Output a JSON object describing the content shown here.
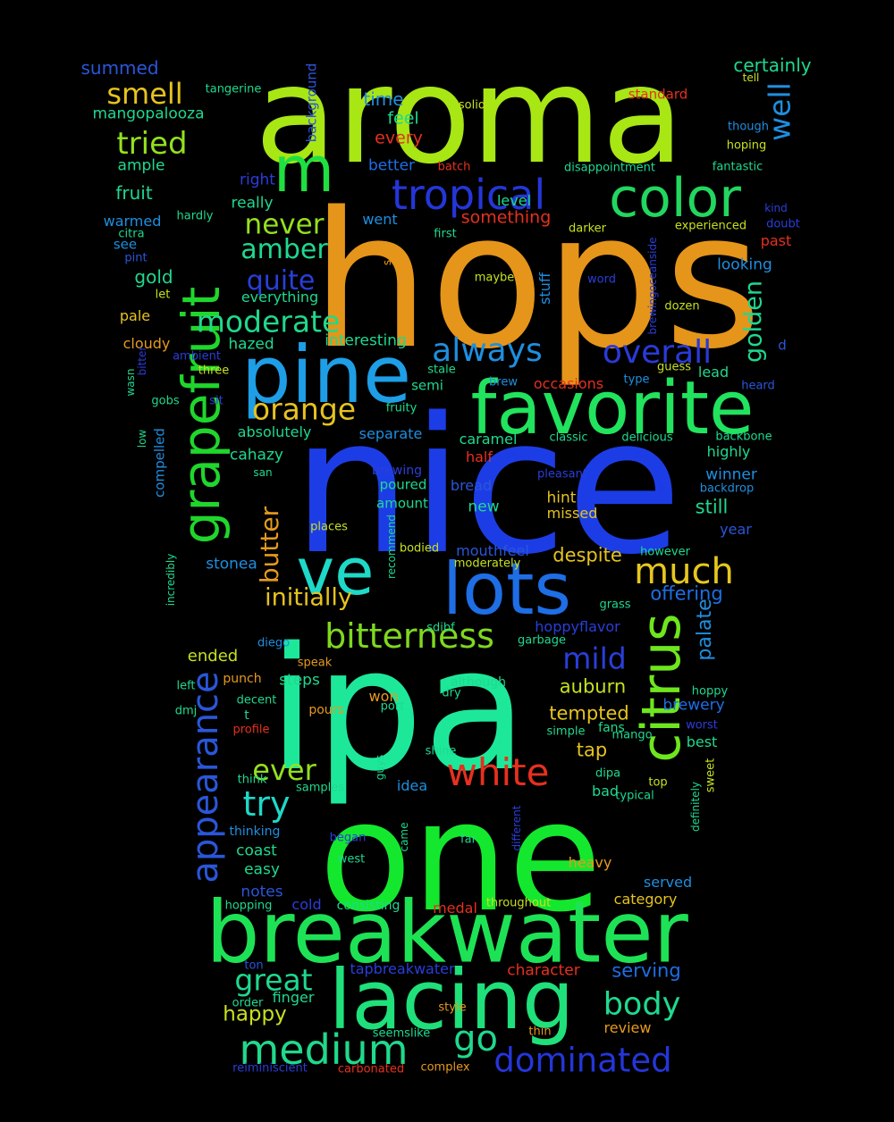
{
  "words": [
    {
      "text": "aroma",
      "color": "#a8e614"
    },
    {
      "text": "hops",
      "color": "#e5951a"
    },
    {
      "text": "nice",
      "color": "#1c3de6"
    },
    {
      "text": "ipa",
      "color": "#1de89a"
    },
    {
      "text": "one",
      "color": "#14e82e"
    },
    {
      "text": "breakwater",
      "color": "#1ee255"
    },
    {
      "text": "lacing",
      "color": "#1fe07a"
    },
    {
      "text": "pine",
      "color": "#1e9ee6"
    },
    {
      "text": "favorite",
      "color": "#21e35e"
    },
    {
      "text": "lots",
      "color": "#1e6ee6"
    },
    {
      "text": "grapefruit",
      "color": "#20d62c"
    },
    {
      "text": "citrus",
      "color": "#6ee61e"
    },
    {
      "text": "color",
      "color": "#22d65f"
    },
    {
      "text": "tropical",
      "color": "#2436d9"
    },
    {
      "text": "ve",
      "color": "#1ed9c8"
    },
    {
      "text": "m",
      "color": "#1ee040"
    },
    {
      "text": "white",
      "color": "#e6301e"
    },
    {
      "text": "medium",
      "color": "#20d98c"
    },
    {
      "text": "appearance",
      "color": "#2a56d9"
    },
    {
      "text": "much",
      "color": "#e6c71e"
    },
    {
      "text": "bitterness",
      "color": "#7fd81e"
    },
    {
      "text": "always",
      "color": "#1e8fe0"
    },
    {
      "text": "overall",
      "color": "#2a3ad9"
    },
    {
      "text": "moderate",
      "color": "#20d98a"
    },
    {
      "text": "dominated",
      "color": "#2436d9"
    },
    {
      "text": "orange",
      "color": "#e6c31e"
    },
    {
      "text": "mild",
      "color": "#2a3ed9"
    },
    {
      "text": "butter",
      "color": "#e69a1e"
    },
    {
      "text": "go",
      "color": "#1ed98f"
    },
    {
      "text": "body",
      "color": "#1ed98f"
    },
    {
      "text": "great",
      "color": "#1ed98f"
    },
    {
      "text": "try",
      "color": "#1ed9c8"
    },
    {
      "text": "ever",
      "color": "#94e01e"
    },
    {
      "text": "quite",
      "color": "#2a3ed9"
    },
    {
      "text": "tried",
      "color": "#94e01e"
    },
    {
      "text": "smell",
      "color": "#e6c31e"
    },
    {
      "text": "never",
      "color": "#94e01e"
    },
    {
      "text": "amber",
      "color": "#1ed98f"
    },
    {
      "text": "well",
      "color": "#1e8fe0"
    },
    {
      "text": "golden",
      "color": "#1ed98f"
    },
    {
      "text": "palate",
      "color": "#1e8fe0"
    },
    {
      "text": "initially",
      "color": "#e6c31e"
    },
    {
      "text": "happy",
      "color": "#c8e01e"
    },
    {
      "text": "despite",
      "color": "#e6c31e"
    },
    {
      "text": "offering",
      "color": "#1e6ee6"
    },
    {
      "text": "auburn",
      "color": "#c8e01e"
    },
    {
      "text": "tempted",
      "color": "#e6c31e"
    },
    {
      "text": "serving",
      "color": "#1e6ee6"
    },
    {
      "text": "tap",
      "color": "#e6c31e"
    },
    {
      "text": "still",
      "color": "#1ed98f"
    },
    {
      "text": "certainly",
      "color": "#1ed98f"
    },
    {
      "text": "summed",
      "color": "#2a56d9"
    },
    {
      "text": "mangopalooza",
      "color": "#1ed98f"
    },
    {
      "text": "time",
      "color": "#1e8fe0"
    },
    {
      "text": "feel",
      "color": "#1ed98f"
    },
    {
      "text": "every",
      "color": "#e6301e"
    },
    {
      "text": "better",
      "color": "#1e6ee6"
    },
    {
      "text": "something",
      "color": "#e6301e"
    },
    {
      "text": "fruit",
      "color": "#1ed98f"
    },
    {
      "text": "ample",
      "color": "#1ed98f"
    },
    {
      "text": "right",
      "color": "#2a3ed9"
    },
    {
      "text": "really",
      "color": "#1ed98f"
    },
    {
      "text": "went",
      "color": "#1e8fe0"
    },
    {
      "text": "level",
      "color": "#1ed98f"
    },
    {
      "text": "warmed",
      "color": "#1e8fe0"
    },
    {
      "text": "see",
      "color": "#1e8fe0"
    },
    {
      "text": "gold",
      "color": "#1ed98f"
    },
    {
      "text": "pale",
      "color": "#e6c31e"
    },
    {
      "text": "cloudy",
      "color": "#e69a1e"
    },
    {
      "text": "hazed",
      "color": "#1ed98f"
    },
    {
      "text": "interesting",
      "color": "#1ed98f"
    },
    {
      "text": "everything",
      "color": "#1ed98f"
    },
    {
      "text": "looking",
      "color": "#1e8fe0"
    },
    {
      "text": "past",
      "color": "#e6301e"
    },
    {
      "text": "stuff",
      "color": "#1e8fe0"
    },
    {
      "text": "background",
      "color": "#2a56d9"
    },
    {
      "text": "standard",
      "color": "#e6301e"
    },
    {
      "text": "occasions",
      "color": "#e6301e"
    },
    {
      "text": "absolutely",
      "color": "#1ed98f"
    },
    {
      "text": "separate",
      "color": "#1e8fe0"
    },
    {
      "text": "caramel",
      "color": "#1ed98f"
    },
    {
      "text": "highly",
      "color": "#1ed98f"
    },
    {
      "text": "winner",
      "color": "#1e8fe0"
    },
    {
      "text": "cahazy",
      "color": "#1ed98f"
    },
    {
      "text": "half",
      "color": "#e6301e"
    },
    {
      "text": "compelled",
      "color": "#1e8fe0"
    },
    {
      "text": "semi",
      "color": "#1ed98f"
    },
    {
      "text": "new",
      "color": "#1ed98f"
    },
    {
      "text": "hint",
      "color": "#e6c31e"
    },
    {
      "text": "missed",
      "color": "#e6c31e"
    },
    {
      "text": "bread",
      "color": "#2a56d9"
    },
    {
      "text": "poured",
      "color": "#1ed98f"
    },
    {
      "text": "amount",
      "color": "#1ed98f"
    },
    {
      "text": "year",
      "color": "#2a56d9"
    },
    {
      "text": "lead",
      "color": "#1ed98f"
    },
    {
      "text": "mouthfeel",
      "color": "#2a56d9"
    },
    {
      "text": "stonea",
      "color": "#1e8fe0"
    },
    {
      "text": "ended",
      "color": "#c8e01e"
    },
    {
      "text": "steps",
      "color": "#1ed98f"
    },
    {
      "text": "won",
      "color": "#e69a1e"
    },
    {
      "text": "brewery",
      "color": "#1e6ee6"
    },
    {
      "text": "best",
      "color": "#1ed98f"
    },
    {
      "text": "idea",
      "color": "#1e8fe0"
    },
    {
      "text": "bad",
      "color": "#1ed98f"
    },
    {
      "text": "coast",
      "color": "#1ed98f"
    },
    {
      "text": "easy",
      "color": "#1ed98f"
    },
    {
      "text": "notes",
      "color": "#2a56d9"
    },
    {
      "text": "cold",
      "color": "#2a3ed9"
    },
    {
      "text": "heavy",
      "color": "#e69a1e"
    },
    {
      "text": "served",
      "color": "#1e8fe0"
    },
    {
      "text": "category",
      "color": "#e6c31e"
    },
    {
      "text": "medal",
      "color": "#e6301e"
    },
    {
      "text": "character",
      "color": "#e6301e"
    },
    {
      "text": "tapbreakwater",
      "color": "#2a3ed9"
    },
    {
      "text": "finger",
      "color": "#1ed98f"
    },
    {
      "text": "review",
      "color": "#e69a1e"
    },
    {
      "text": "hoppyflavor",
      "color": "#2a3ed9"
    },
    {
      "text": "although",
      "color": "#1ed98f"
    },
    {
      "text": "fans",
      "color": "#1ed98f"
    },
    {
      "text": "thinking",
      "color": "#1e8fe0"
    },
    {
      "text": "consisting",
      "color": "#1ed98f"
    },
    {
      "text": "pours",
      "color": "#e69a1e"
    },
    {
      "text": "t",
      "color": "#1ed98f"
    },
    {
      "text": "think",
      "color": "#1ed98f"
    },
    {
      "text": "tangerine",
      "color": "#1ed98f"
    },
    {
      "text": "solid",
      "color": "#c8e01e"
    },
    {
      "text": "batch",
      "color": "#e6301e"
    },
    {
      "text": "disappointment",
      "color": "#1ed98f"
    },
    {
      "text": "fantastic",
      "color": "#1ed98f"
    },
    {
      "text": "tell",
      "color": "#c8e01e"
    },
    {
      "text": "though",
      "color": "#1e8fe0"
    },
    {
      "text": "hoping",
      "color": "#c8e01e"
    },
    {
      "text": "kind",
      "color": "#2a3ed9"
    },
    {
      "text": "doubt",
      "color": "#2a3ed9"
    },
    {
      "text": "experienced",
      "color": "#c8e01e"
    },
    {
      "text": "brewingoceanside",
      "color": "#2a3ed9"
    },
    {
      "text": "darker",
      "color": "#c8e01e"
    },
    {
      "text": "first",
      "color": "#1ed98f"
    },
    {
      "text": "word",
      "color": "#2a3ed9"
    },
    {
      "text": "maybe",
      "color": "#c8e01e"
    },
    {
      "text": "dozen",
      "color": "#c8e01e"
    },
    {
      "text": "hardly",
      "color": "#1ed98f"
    },
    {
      "text": "citra",
      "color": "#1ed98f"
    },
    {
      "text": "pint",
      "color": "#2a56d9"
    },
    {
      "text": "let",
      "color": "#c8e01e"
    },
    {
      "text": "ambient",
      "color": "#2a3ed9"
    },
    {
      "text": "three",
      "color": "#c8e01e"
    },
    {
      "text": "bitter",
      "color": "#2a3ed9"
    },
    {
      "text": "sit",
      "color": "#2a3ed9"
    },
    {
      "text": "gobs",
      "color": "#1ed98f"
    },
    {
      "text": "wasn",
      "color": "#1ed98f"
    },
    {
      "text": "low",
      "color": "#1ed98f"
    },
    {
      "text": "stale",
      "color": "#1ed98f"
    },
    {
      "text": "brew",
      "color": "#1e8fe0"
    },
    {
      "text": "fruity",
      "color": "#1ed98f"
    },
    {
      "text": "type",
      "color": "#1e8fe0"
    },
    {
      "text": "guess",
      "color": "#c8e01e"
    },
    {
      "text": "heard",
      "color": "#2a56d9"
    },
    {
      "text": "d",
      "color": "#2a56d9"
    },
    {
      "text": "classic",
      "color": "#1ed98f"
    },
    {
      "text": "delicious",
      "color": "#1ed98f"
    },
    {
      "text": "backbone",
      "color": "#1ed98f"
    },
    {
      "text": "backdrop",
      "color": "#1e8fe0"
    },
    {
      "text": "san",
      "color": "#1ed98f"
    },
    {
      "text": "brewing",
      "color": "#2a3ed9"
    },
    {
      "text": "pleasant",
      "color": "#2a3ed9"
    },
    {
      "text": "places",
      "color": "#c8e01e"
    },
    {
      "text": "recommend",
      "color": "#1ed98f"
    },
    {
      "text": "bodied",
      "color": "#c8e01e"
    },
    {
      "text": "moderately",
      "color": "#c8e01e"
    },
    {
      "text": "however",
      "color": "#1ed98f"
    },
    {
      "text": "incredibly",
      "color": "#1ed98f"
    },
    {
      "text": "grass",
      "color": "#1ed98f"
    },
    {
      "text": "garbage",
      "color": "#1ed98f"
    },
    {
      "text": "sdibf",
      "color": "#1ed98f"
    },
    {
      "text": "diego",
      "color": "#1e8fe0"
    },
    {
      "text": "speak",
      "color": "#e69a1e"
    },
    {
      "text": "punch",
      "color": "#e69a1e"
    },
    {
      "text": "left",
      "color": "#1ed98f"
    },
    {
      "text": "decent",
      "color": "#1ed98f"
    },
    {
      "text": "hoppy",
      "color": "#1ed98f"
    },
    {
      "text": "dmj",
      "color": "#1ed98f"
    },
    {
      "text": "profile",
      "color": "#e6301e"
    },
    {
      "text": "port",
      "color": "#1ed98f"
    },
    {
      "text": "dry",
      "color": "#1ed98f"
    },
    {
      "text": "worst",
      "color": "#2a3ed9"
    },
    {
      "text": "simple",
      "color": "#1ed98f"
    },
    {
      "text": "mango",
      "color": "#1ed98f"
    },
    {
      "text": "shine",
      "color": "#1ed98f"
    },
    {
      "text": "dipa",
      "color": "#1ed98f"
    },
    {
      "text": "sweet",
      "color": "#c8e01e"
    },
    {
      "text": "guys",
      "color": "#1ed98f"
    },
    {
      "text": "samples",
      "color": "#1ed98f"
    },
    {
      "text": "top",
      "color": "#c8e01e"
    },
    {
      "text": "typical",
      "color": "#1ed98f"
    },
    {
      "text": "definitely",
      "color": "#1ed98f"
    },
    {
      "text": "different",
      "color": "#2a3ed9"
    },
    {
      "text": "began",
      "color": "#2a3ed9"
    },
    {
      "text": "came",
      "color": "#1ed98f"
    },
    {
      "text": "far",
      "color": "#1ed98f"
    },
    {
      "text": "west",
      "color": "#1ed98f"
    },
    {
      "text": "hopping",
      "color": "#1ed98f"
    },
    {
      "text": "throughout",
      "color": "#c8e01e"
    },
    {
      "text": "ton",
      "color": "#2a56d9"
    },
    {
      "text": "order",
      "color": "#1ed98f"
    },
    {
      "text": "style",
      "color": "#e69a1e"
    },
    {
      "text": "seemslike",
      "color": "#1ed98f"
    },
    {
      "text": "thin",
      "color": "#e69a1e"
    },
    {
      "text": "reiminiscient",
      "color": "#2a3ed9"
    },
    {
      "text": "carbonated",
      "color": "#e6301e"
    },
    {
      "text": "complex",
      "color": "#e69a1e"
    },
    {
      "text": "s",
      "color": "#e69a1e"
    }
  ]
}
